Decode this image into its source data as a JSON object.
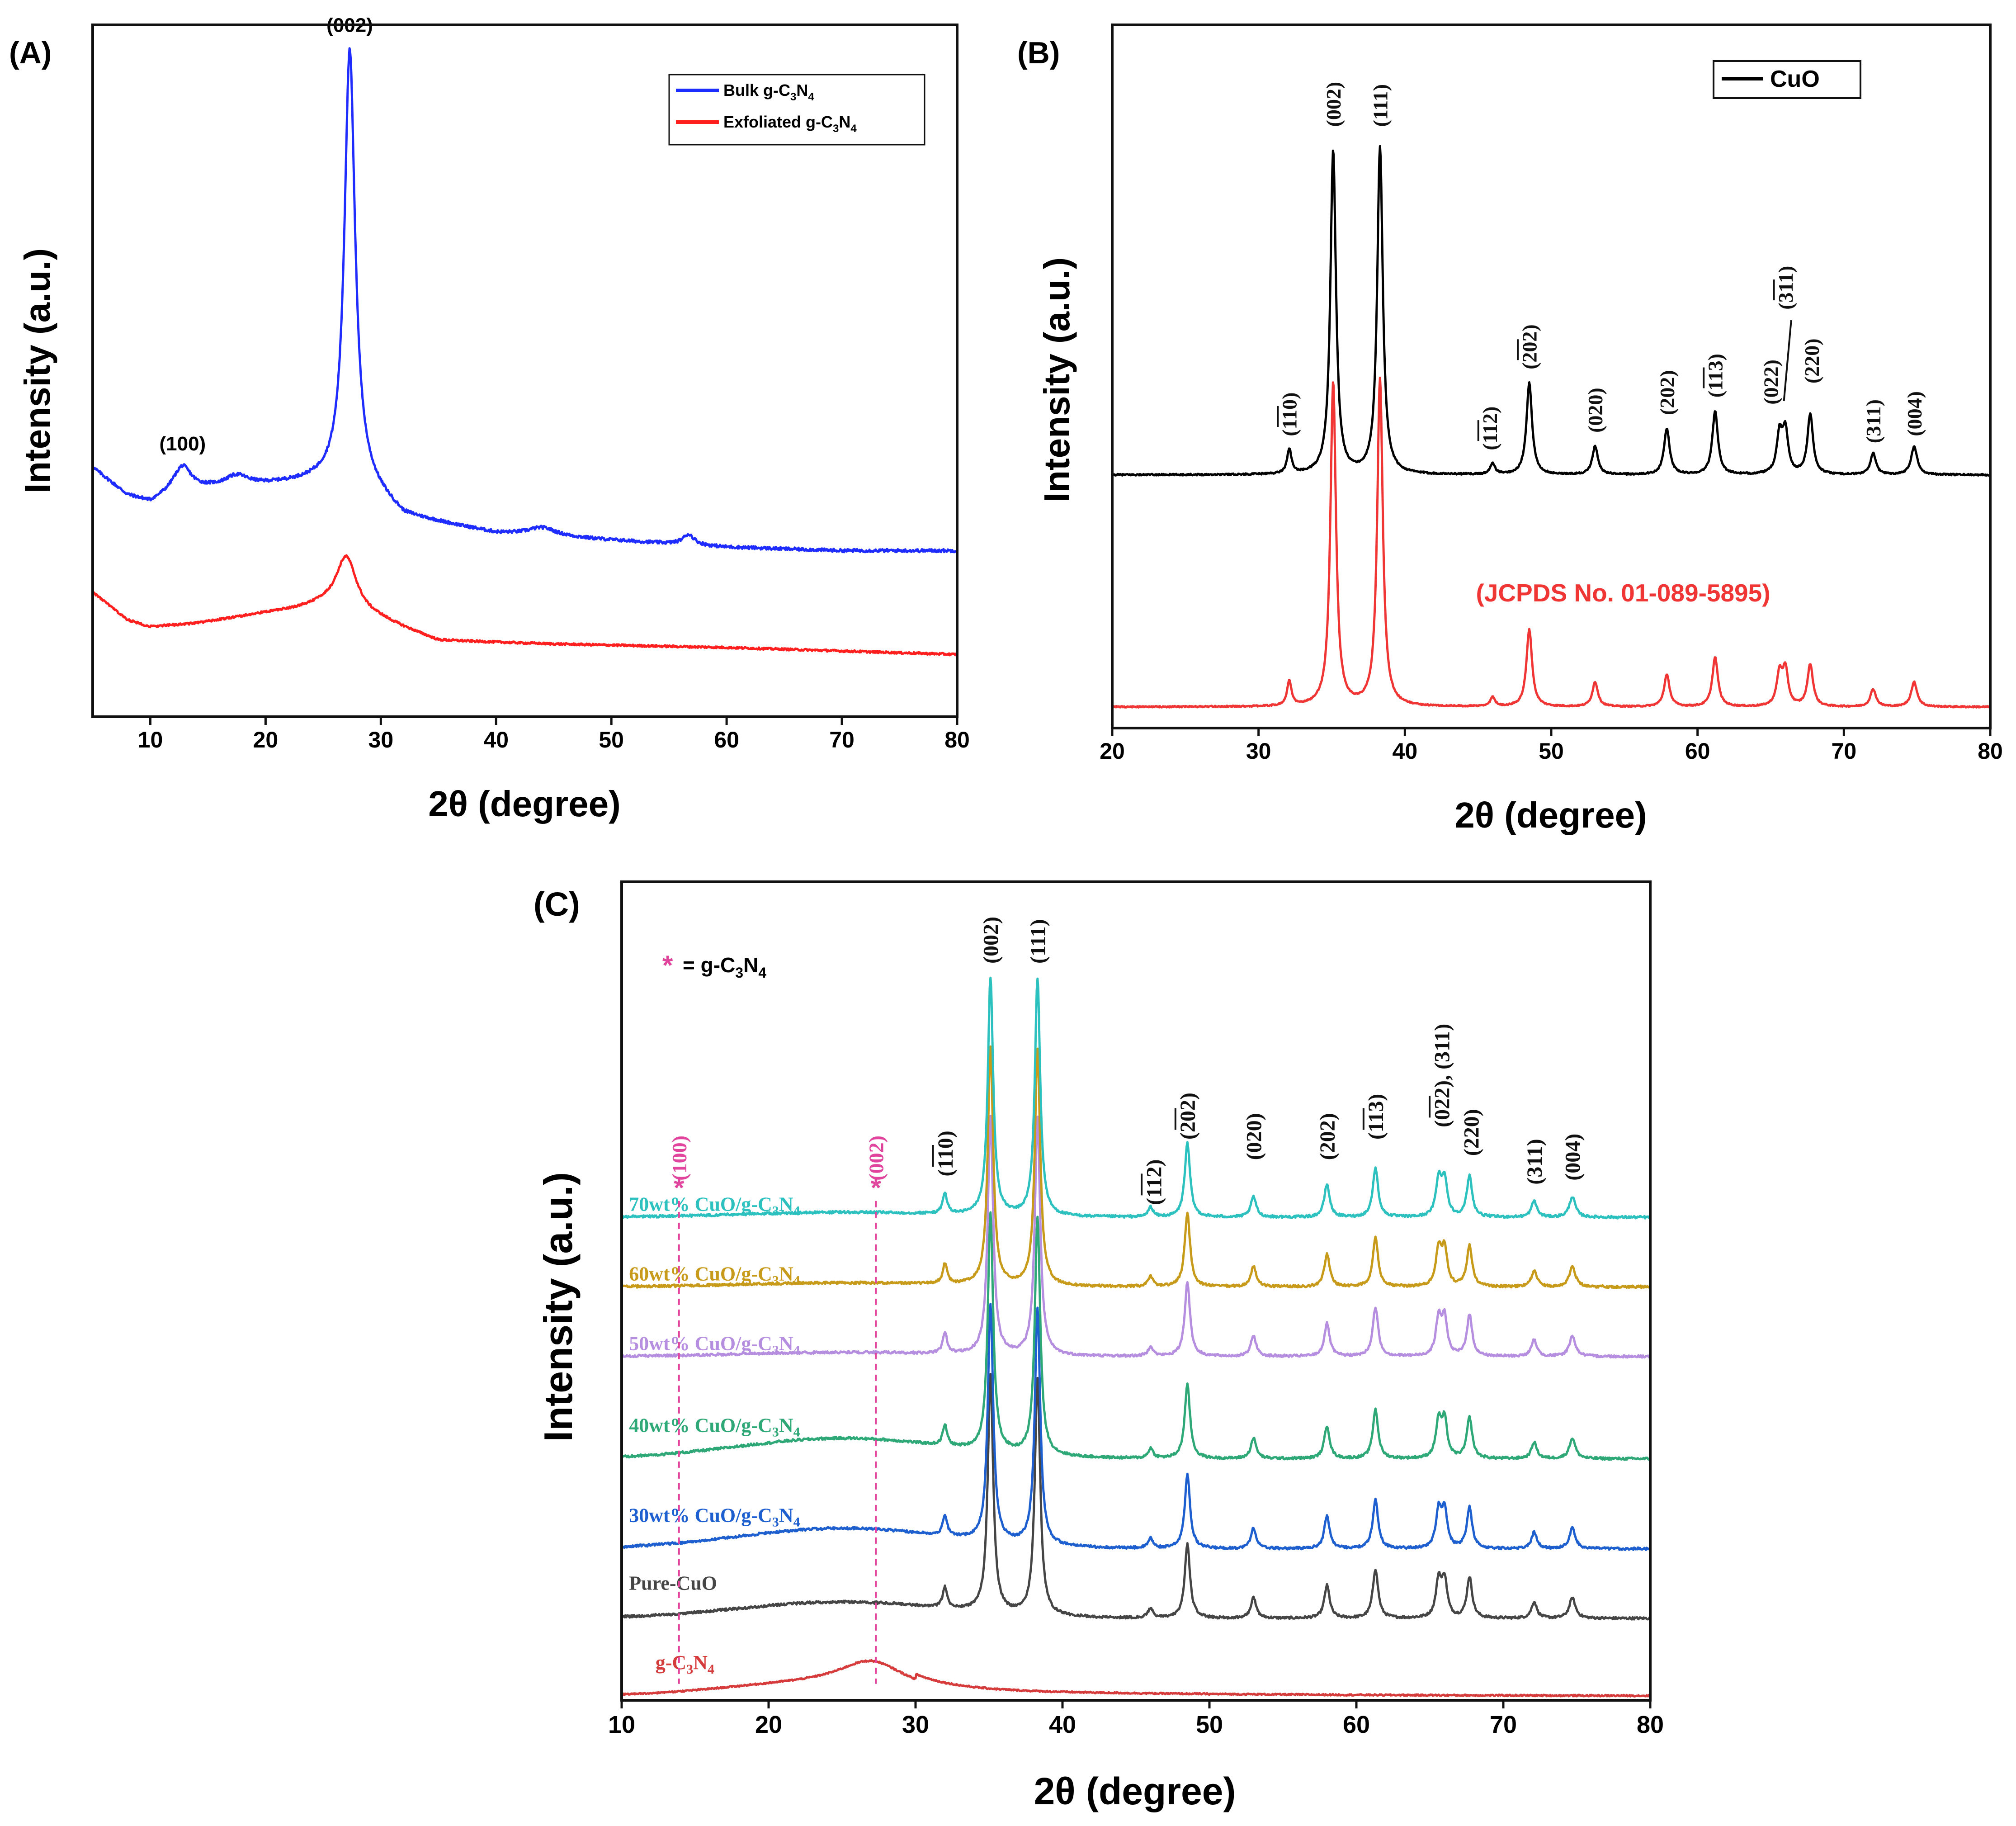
{
  "figure": {
    "panel_count": 3
  },
  "colors": {
    "axis": "#111111",
    "bulk": "#1f2cff",
    "exfoliated": "#ff1f1f",
    "cuo": "#000000",
    "jcpds": "#f03535",
    "c70": "#2cc1bf",
    "c60": "#c79a1a",
    "c50": "#b58ee0",
    "c40": "#2fa877",
    "c30": "#1e5fcf",
    "pure": "#454545",
    "gcn": "#d63b3b",
    "marker": "#e0449c"
  },
  "chart_data": [
    {
      "id": "A",
      "type": "line",
      "panel_label": "(A)",
      "xlabel": "2θ (degree)",
      "ylabel": "Intensity (a.u.)",
      "xlim": [
        5,
        80
      ],
      "ylim": [
        0,
        100
      ],
      "xticks": [
        10,
        20,
        30,
        40,
        50,
        60,
        70,
        80
      ],
      "legend_position": "top-right",
      "series": [
        {
          "name": "Bulk g-C3N4",
          "legend_text": "Bulk g-C",
          "legend_sub1": "3",
          "legend_mid": "N",
          "legend_sub2": "4",
          "color_key": "bulk",
          "baseline": 24,
          "baseline_points": [
            [
              5,
              36
            ],
            [
              8,
              32
            ],
            [
              10,
              31
            ],
            [
              12,
              32.5
            ],
            [
              15,
              33
            ],
            [
              20,
              33.5
            ],
            [
              24,
              34
            ],
            [
              28,
              34.5
            ],
            [
              32,
              29
            ],
            [
              40,
              26.5
            ],
            [
              50,
              25.5
            ],
            [
              60,
              24.5
            ],
            [
              70,
              24
            ],
            [
              80,
              24
            ]
          ],
          "peaks": [
            [
              12.8,
              3.5,
              0.9
            ],
            [
              17.5,
              1.5,
              1.2
            ],
            [
              27.3,
              62,
              0.55
            ],
            [
              44,
              1.2,
              1.5
            ],
            [
              56.7,
              1.5,
              0.6
            ]
          ],
          "noise": 0.45
        },
        {
          "name": "Exfoliated g-C3N4",
          "legend_text": "Exfoliated g-C",
          "legend_sub1": "3",
          "legend_mid": "N",
          "legend_sub2": "4",
          "color_key": "exfoliated",
          "baseline_points": [
            [
              5,
              18
            ],
            [
              8,
              14
            ],
            [
              10,
              13
            ],
            [
              14,
              13.5
            ],
            [
              20,
              15
            ],
            [
              25,
              16
            ],
            [
              30,
              14
            ],
            [
              35,
              11
            ],
            [
              45,
              10.5
            ],
            [
              60,
              10
            ],
            [
              80,
              9
            ]
          ],
          "peaks": [
            [
              27.0,
              8,
              1.1
            ]
          ],
          "noise": 0.3
        }
      ],
      "annotations": [
        {
          "text": "(100)",
          "x": 12.8,
          "y": 38.5
        },
        {
          "text": "(002)",
          "x": 27.3,
          "y": 99
        }
      ]
    },
    {
      "id": "B",
      "type": "line",
      "panel_label": "(B)",
      "xlabel": "2θ (degree)",
      "ylabel": "Intensity (a.u.)",
      "xlim": [
        20,
        80
      ],
      "ylim": [
        0,
        100
      ],
      "xticks": [
        20,
        30,
        40,
        50,
        60,
        70,
        80
      ],
      "legend_position": "top-right",
      "series": [
        {
          "name": "CuO",
          "color_key": "cuo",
          "baseline": 36,
          "peaks": [
            [
              32.1,
              3.5,
              0.18
            ],
            [
              35.1,
              46,
              0.23
            ],
            [
              38.3,
              46.5,
              0.23
            ],
            [
              46.0,
              1.5,
              0.2
            ],
            [
              48.5,
              13,
              0.23
            ],
            [
              53.0,
              4,
              0.23
            ],
            [
              57.9,
              6.5,
              0.23
            ],
            [
              61.2,
              9,
              0.23
            ],
            [
              65.6,
              5.5,
              0.23
            ],
            [
              66.0,
              6,
              0.23
            ],
            [
              67.7,
              8.5,
              0.23
            ],
            [
              72.0,
              3,
              0.23
            ],
            [
              74.8,
              4,
              0.25
            ]
          ],
          "noise": 0.22
        },
        {
          "name": "JCPDS No. 01-089-5895",
          "color_key": "jcpds",
          "baseline": 3,
          "peaks": [
            [
              32.1,
              3.5,
              0.18
            ],
            [
              35.1,
              46,
              0.23
            ],
            [
              38.3,
              46.5,
              0.23
            ],
            [
              46.0,
              1.3,
              0.2
            ],
            [
              48.5,
              11,
              0.23
            ],
            [
              53.0,
              3.5,
              0.23
            ],
            [
              57.9,
              4.5,
              0.23
            ],
            [
              61.2,
              7,
              0.23
            ],
            [
              65.6,
              4.5,
              0.23
            ],
            [
              66.0,
              5,
              0.23
            ],
            [
              67.7,
              6,
              0.23
            ],
            [
              72.0,
              2.5,
              0.23
            ],
            [
              74.8,
              3.5,
              0.25
            ]
          ],
          "noise": 0.2
        }
      ],
      "legend_label": "CuO",
      "jcpds_label": "(JCPDS No. 01-089-5895)",
      "peak_labels": [
        {
          "text": "(110)",
          "x": 32.1,
          "y": 41.5,
          "bar": true
        },
        {
          "text": "(002)",
          "x": 35.1,
          "y": 85.5
        },
        {
          "text": "(111)",
          "x": 38.3,
          "y": 85.5
        },
        {
          "text": "(112)",
          "x": 45.8,
          "y": 39.5,
          "bar": true
        },
        {
          "text": "(202)",
          "x": 48.5,
          "y": 51,
          "bar": true
        },
        {
          "text": "(020)",
          "x": 53.0,
          "y": 42
        },
        {
          "text": "(202)",
          "x": 57.9,
          "y": 44.5
        },
        {
          "text": "(113)",
          "x": 61.2,
          "y": 47,
          "bar": true
        },
        {
          "text": "(022)",
          "x": 65.0,
          "y": 46
        },
        {
          "text": "(311)",
          "x": 66.0,
          "y": 59.5,
          "bar": true
        },
        {
          "text": "(220)",
          "x": 67.8,
          "y": 49
        },
        {
          "text": "(311)",
          "x": 72.0,
          "y": 40.5
        },
        {
          "text": "(004)",
          "x": 74.8,
          "y": 41.5
        }
      ]
    },
    {
      "id": "C",
      "type": "line",
      "panel_label": "(C)",
      "xlabel": "2θ (degree)",
      "ylabel": "Intensity (a.u.)",
      "xlim": [
        10,
        80
      ],
      "ylim": [
        0,
        100
      ],
      "xticks": [
        10,
        20,
        30,
        40,
        50,
        60,
        70,
        80
      ],
      "legend_note": "* = g-C3N4",
      "legend_star": "*",
      "legend_text": "= g-C",
      "legend_sub1": "3",
      "legend_mid": "N",
      "legend_sub2": "4",
      "series": [
        {
          "name": "70wt% CuO/g-C3N4",
          "label_main": "70wt% CuO/g-C",
          "sub1": "3",
          "mid": "N",
          "sub2": "4",
          "color_key": "c70",
          "baseline": 59,
          "hump": 0.6,
          "scale": 1.0
        },
        {
          "name": "60wt% CuO/g-C3N4",
          "label_main": "60wt% CuO/g-C",
          "sub1": "3",
          "mid": "N",
          "sub2": "4",
          "color_key": "c60",
          "baseline": 50.5,
          "hump": 0.5,
          "scale": 1.0
        },
        {
          "name": "50wt% CuO/g-C3N4",
          "label_main": "50wt% CuO/g-C",
          "sub1": "3",
          "mid": "N",
          "sub2": "4",
          "color_key": "c50",
          "baseline": 42,
          "hump": 0.5,
          "scale": 1.0
        },
        {
          "name": "40wt% CuO/g-C3N4",
          "label_main": "40wt% CuO/g-C",
          "sub1": "3",
          "mid": "N",
          "sub2": "4",
          "color_key": "c40",
          "baseline": 29.5,
          "hump": 2.5,
          "scale": 1.0
        },
        {
          "name": "30wt% CuO/g-C3N4",
          "label_main": "30wt% CuO/g-C",
          "sub1": "3",
          "mid": "N",
          "sub2": "4",
          "color_key": "c30",
          "baseline": 18.5,
          "hump": 2.5,
          "scale": 1.0
        },
        {
          "name": "Pure-CuO",
          "label_main": "Pure-CuO",
          "sub1": "",
          "mid": "",
          "sub2": "",
          "color_key": "pure",
          "baseline": 10,
          "hump": 2.0,
          "scale": 1.0
        }
      ],
      "gcn_series": {
        "name": "g-C3N4",
        "label_main": "g-C",
        "sub1": "3",
        "mid": "N",
        "sub2": "4",
        "color_key": "gcn",
        "baseline": 0.5,
        "peak": [
          27.0,
          3.5,
          1.3
        ]
      },
      "cuo_peaks": [
        [
          32.0,
          2.5,
          0.18
        ],
        [
          35.1,
          29,
          0.22
        ],
        [
          38.3,
          29,
          0.22
        ],
        [
          46.0,
          1.2,
          0.2
        ],
        [
          48.5,
          9,
          0.22
        ],
        [
          53.0,
          2.5,
          0.22
        ],
        [
          58.0,
          4,
          0.22
        ],
        [
          61.3,
          6,
          0.22
        ],
        [
          65.6,
          4.5,
          0.22
        ],
        [
          66.0,
          4.5,
          0.22
        ],
        [
          67.7,
          5,
          0.22
        ],
        [
          72.1,
          2,
          0.22
        ],
        [
          74.7,
          2.5,
          0.25
        ]
      ],
      "marker_lines": [
        {
          "x": 13.9,
          "label": "(100)",
          "star": "*"
        },
        {
          "x": 27.3,
          "label": "(002)",
          "star": "*"
        }
      ],
      "peak_labels": [
        {
          "text": "(110)",
          "x": 32.0,
          "y": 64,
          "bar": true
        },
        {
          "text": "(002)",
          "x": 35.1,
          "y": 90
        },
        {
          "text": "(111)",
          "x": 38.3,
          "y": 90
        },
        {
          "text": "(112)",
          "x": 46.2,
          "y": 60.5,
          "bar": true
        },
        {
          "text": "(202)",
          "x": 48.5,
          "y": 68.5,
          "bar": true
        },
        {
          "text": "(020)",
          "x": 53.0,
          "y": 66
        },
        {
          "text": "(202)",
          "x": 58.0,
          "y": 66
        },
        {
          "text": "(113)",
          "x": 61.3,
          "y": 68.5,
          "bar": true
        },
        {
          "text": "(022), (311)",
          "x": 65.8,
          "y": 70,
          "bar": true
        },
        {
          "text": "(220)",
          "x": 67.8,
          "y": 66.5
        },
        {
          "text": "(311)",
          "x": 72.1,
          "y": 63
        },
        {
          "text": "(004)",
          "x": 74.7,
          "y": 63.5
        }
      ]
    }
  ]
}
